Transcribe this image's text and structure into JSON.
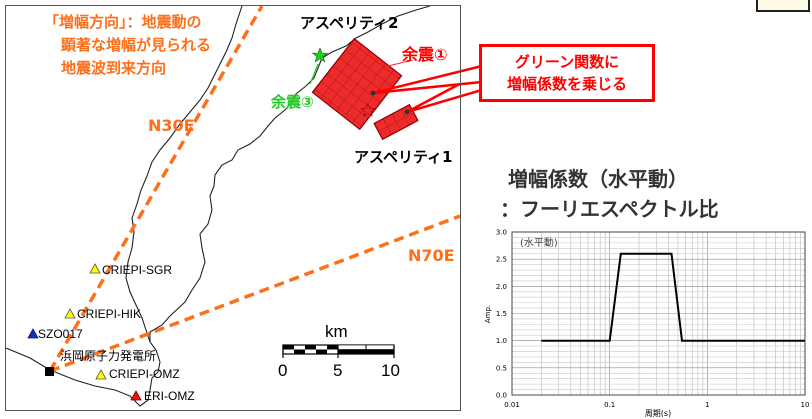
{
  "direction_note": {
    "line1": "「増幅方向」：地震動の",
    "line2": "顕著な増幅が見られる",
    "line3": "地震波到来方向"
  },
  "directions": {
    "n30e": "N30E",
    "n70e": "N70E"
  },
  "asperities": {
    "a1": "アスペリティ1",
    "a2": "アスペリティ2"
  },
  "aftershocks": {
    "a1": "余震①",
    "a3": "余震③"
  },
  "callout": {
    "line1": "グリーン関数に",
    "line2": "増幅係数を乗じる"
  },
  "stations": {
    "sgr": "CRIEPI-SGR",
    "hik": "CRIEPI-HIK",
    "szo": "SZO017",
    "plant": "浜岡原子力発電所",
    "omz": "CRIEPI-OMZ",
    "eri": "ERI-OMZ"
  },
  "scale": {
    "unit": "km",
    "ticks": [
      "0",
      "5",
      "10"
    ]
  },
  "colors": {
    "orange": "#ff6f1a",
    "asperity": "#ee2b2b",
    "aftershock_green": "#22cc22",
    "callout_red": "#ff0000",
    "station_yellow": "#ffff00",
    "station_blue": "#1030c0",
    "station_red": "#ee1111"
  },
  "chart_title": {
    "line1": "増幅係数（水平動）",
    "line2": "：フーリエスペクトル比"
  },
  "chart_data": {
    "type": "line",
    "note": "(水平動)",
    "xlabel": "周期(s)",
    "ylabel": "Amp.",
    "xscale": "log",
    "xlim": [
      0.01,
      10
    ],
    "ylim": [
      0.0,
      3.0
    ],
    "xticks": [
      "0.01",
      "0.1",
      "1",
      "10"
    ],
    "yticks": [
      "0.0",
      "0.5",
      "1.0",
      "1.5",
      "2.0",
      "2.5",
      "3.0"
    ],
    "grid": true,
    "x": [
      0.02,
      0.1,
      0.13,
      0.43,
      0.55,
      10
    ],
    "y": [
      1.0,
      1.0,
      2.6,
      2.6,
      1.0,
      1.0
    ]
  }
}
